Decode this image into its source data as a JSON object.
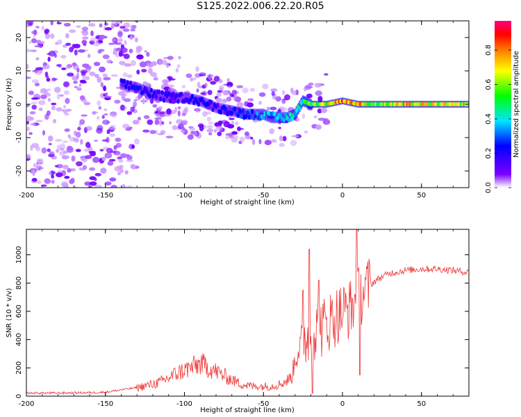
{
  "figure": {
    "title": "S125.2022.006.22.20.R05"
  },
  "colorbar": {
    "label": "Normalized spectral amplitude",
    "ticks": [
      "0.0",
      "0.2",
      "0.4",
      "0.6",
      "0.8"
    ],
    "tick_values": [
      0.0,
      0.2,
      0.4,
      0.6,
      0.8
    ],
    "range": [
      0,
      0.97
    ],
    "colors": [
      "#ffffff",
      "#7b00ff",
      "#0000ff",
      "#00e5ff",
      "#00ff00",
      "#ffff00",
      "#ff8000",
      "#ff0000",
      "#ff0080"
    ]
  },
  "chart_data": [
    {
      "type": "heatmap",
      "title": "",
      "xlabel": "Height of straight line (km)",
      "ylabel": "Frequency (Hz)",
      "xlim": [
        -200,
        80
      ],
      "ylim": [
        -25,
        25
      ],
      "xticks": [
        -200,
        -150,
        -100,
        -50,
        0,
        50
      ],
      "yticks": [
        -20,
        -10,
        0,
        10,
        20
      ],
      "xtick_labels": [
        "-200",
        "-150",
        "-100",
        "-50",
        "0",
        "50"
      ],
      "ytick_labels": [
        "-20",
        "-10",
        "0",
        "10",
        "20"
      ],
      "ridge": {
        "name": "",
        "x": [
          -140,
          -130,
          -120,
          -110,
          -100,
          -90,
          -80,
          -70,
          -60,
          -50,
          -45,
          -40,
          -35,
          -30,
          -25,
          -20,
          -10,
          0,
          10,
          20,
          40,
          60,
          80
        ],
        "y": [
          6,
          5,
          3,
          2,
          2,
          1,
          -1,
          -2,
          -3,
          -3,
          -4,
          -4,
          -4,
          -3,
          1,
          0,
          0,
          1,
          0,
          0,
          0,
          0,
          0
        ],
        "peak_amplitude": [
          0.2,
          0.25,
          0.2,
          0.2,
          0.2,
          0.25,
          0.2,
          0.25,
          0.3,
          0.35,
          0.4,
          0.45,
          0.4,
          0.45,
          0.5,
          0.6,
          0.7,
          0.9,
          0.8,
          0.6,
          0.75,
          0.7,
          0.65
        ]
      }
    },
    {
      "type": "line",
      "title": "",
      "xlabel": "Height of straight line (km)",
      "ylabel": "SNR (10 * v/v)",
      "xlim": [
        -200,
        80
      ],
      "ylim": [
        0,
        1180
      ],
      "xticks": [
        -200,
        -150,
        -100,
        -50,
        0,
        50
      ],
      "yticks": [
        0,
        200,
        400,
        600,
        800,
        1000
      ],
      "xtick_labels": [
        "-200",
        "-150",
        "-100",
        "-50",
        "0",
        "50"
      ],
      "ytick_labels": [
        "0",
        "200",
        "400",
        "600",
        "800",
        "1000"
      ],
      "series": [
        {
          "name": "",
          "color": "#ee3333",
          "x": [
            -200,
            -180,
            -160,
            -150,
            -140,
            -130,
            -120,
            -115,
            -110,
            -105,
            -100,
            -95,
            -90,
            -85,
            -80,
            -75,
            -70,
            -65,
            -60,
            -55,
            -50,
            -45,
            -40,
            -35,
            -32,
            -30,
            -28,
            -25,
            -22,
            -20,
            -18,
            -15,
            -12,
            -10,
            -5,
            0,
            3,
            5,
            8,
            10,
            12,
            15,
            20,
            25,
            30,
            35,
            40,
            50,
            60,
            70,
            80
          ],
          "y": [
            22,
            22,
            25,
            28,
            45,
            60,
            85,
            100,
            130,
            160,
            185,
            205,
            230,
            205,
            175,
            145,
            115,
            90,
            75,
            70,
            70,
            70,
            85,
            110,
            140,
            260,
            330,
            400,
            430,
            440,
            450,
            470,
            490,
            520,
            560,
            600,
            610,
            620,
            660,
            700,
            720,
            760,
            810,
            845,
            870,
            880,
            890,
            900,
            900,
            890,
            875
          ]
        }
      ],
      "spikes": [
        {
          "x": -21,
          "y": 1040
        },
        {
          "x": -25,
          "y": 750
        },
        {
          "x": -15,
          "y": 820
        },
        {
          "x": 9,
          "y": 1175
        },
        {
          "x": 11,
          "y": 150
        },
        {
          "x": -19,
          "y": 20
        }
      ]
    }
  ]
}
